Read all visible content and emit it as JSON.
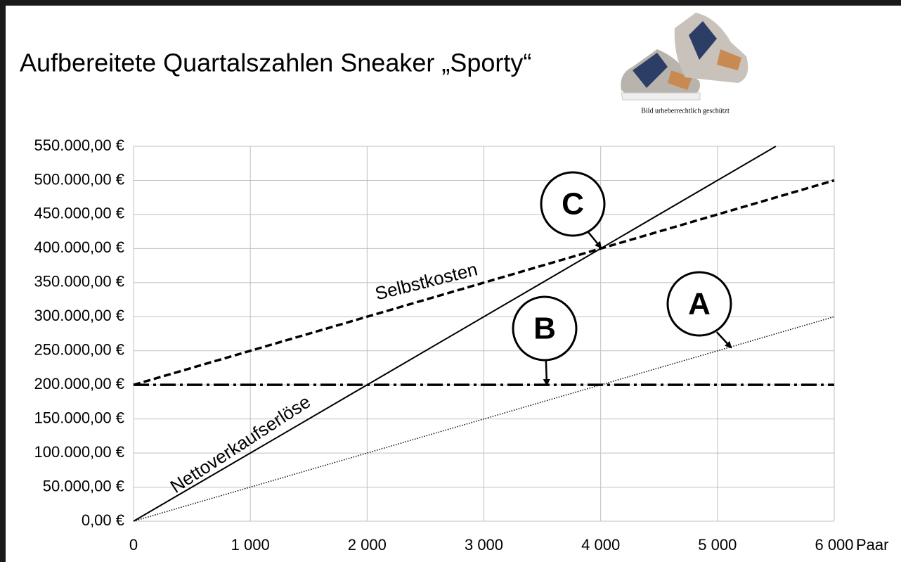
{
  "chart_data": {
    "type": "line",
    "title": "Aufbereitete Quartalszahlen Sneaker „Sporty“",
    "image_caption": "Bild urheberrechtlich geschützt",
    "x_unit": "Paar",
    "xlim": [
      0,
      6000
    ],
    "xticks": [
      0,
      {
        "value": 1000,
        "label": "1 000"
      },
      {
        "value": 2000,
        "label": "2 000"
      },
      {
        "value": 3000,
        "label": "3 000"
      },
      {
        "value": 4000,
        "label": "4 000"
      },
      {
        "value": 5000,
        "label": "5 000"
      },
      {
        "value": 6000,
        "label": "6 000"
      }
    ],
    "ylim": [
      0,
      550000
    ],
    "yticks": [
      {
        "value": 0,
        "label": "0,00 €"
      },
      {
        "value": 50000,
        "label": "50.000,00 €"
      },
      {
        "value": 100000,
        "label": "100.000,00 €"
      },
      {
        "value": 150000,
        "label": "150.000,00 €"
      },
      {
        "value": 200000,
        "label": "200.000,00 €"
      },
      {
        "value": 250000,
        "label": "250.000,00 €"
      },
      {
        "value": 300000,
        "label": "300.000,00 €"
      },
      {
        "value": 350000,
        "label": "350.000,00 €"
      },
      {
        "value": 400000,
        "label": "400.000,00 €"
      },
      {
        "value": 450000,
        "label": "450.000,00 €"
      },
      {
        "value": 500000,
        "label": "500.000,00 €"
      },
      {
        "value": 550000,
        "label": "550.000,00 €"
      }
    ],
    "grid": true,
    "series": [
      {
        "name": "Nettoverkaufserlöse",
        "color": "#000000",
        "style": "solid",
        "x": [
          0,
          5500
        ],
        "values": [
          0,
          550000
        ]
      },
      {
        "name": "Selbstkosten",
        "color": "#000000",
        "style": "dashed",
        "x": [
          0,
          6000
        ],
        "values": [
          200000,
          500000
        ]
      },
      {
        "color": "#000000",
        "style": "dashdot",
        "x": [
          0,
          6000
        ],
        "values": [
          200000,
          200000
        ]
      },
      {
        "color": "#000000",
        "style": "dotted",
        "x": [
          0,
          6000
        ],
        "values": [
          0,
          300000
        ]
      }
    ],
    "annotations": [
      "C",
      "B",
      "A"
    ]
  }
}
